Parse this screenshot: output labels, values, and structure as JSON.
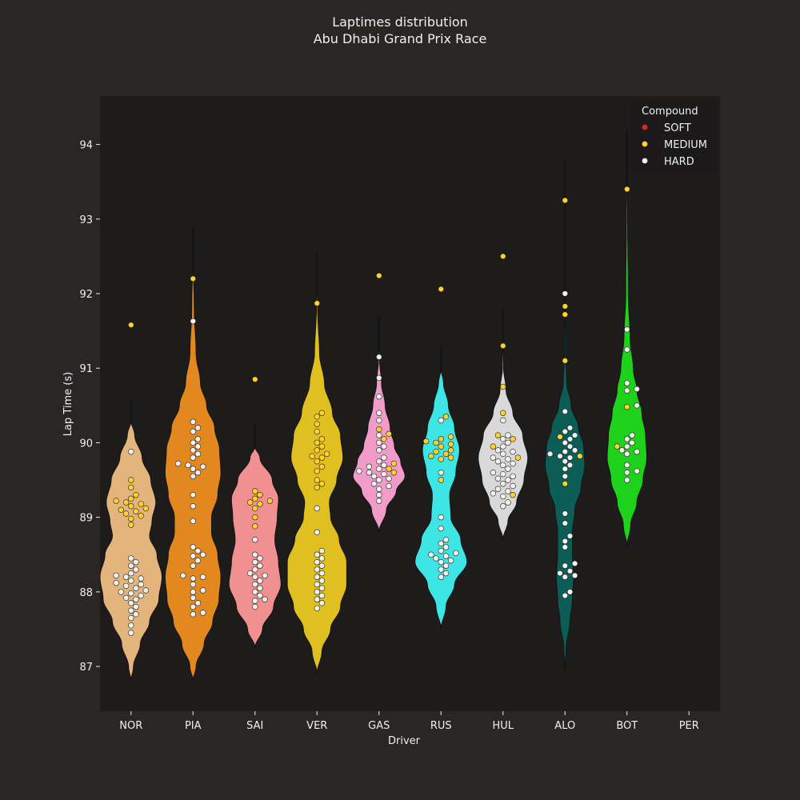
{
  "chart_data": {
    "type": "violin",
    "title": "Laptimes distribution",
    "subtitle": "Abu Dhabi Grand Prix Race",
    "xlabel": "Driver",
    "ylabel": "Lap Time (s)",
    "ylim": [
      86.4,
      94.65
    ],
    "yticks": [
      87,
      88,
      89,
      90,
      91,
      92,
      93,
      94
    ],
    "categories": [
      "NOR",
      "PIA",
      "SAI",
      "VER",
      "GAS",
      "RUS",
      "HUL",
      "ALO",
      "BOT",
      "PER"
    ],
    "legend": {
      "title": "Compound",
      "placement": "top-right",
      "items": [
        {
          "label": "SOFT",
          "color": "#da291c"
        },
        {
          "label": "MEDIUM",
          "color": "#ffd12e"
        },
        {
          "label": "HARD",
          "color": "#f0f0ec"
        }
      ]
    },
    "drivers": [
      {
        "name": "NOR",
        "color": "#e3b47c",
        "profile": [
          [
            86.8,
            0
          ],
          [
            87.0,
            0.04
          ],
          [
            87.3,
            0.15
          ],
          [
            87.6,
            0.3
          ],
          [
            87.9,
            0.45
          ],
          [
            88.2,
            0.5
          ],
          [
            88.5,
            0.42
          ],
          [
            88.75,
            0.3
          ],
          [
            88.95,
            0.34
          ],
          [
            89.2,
            0.4
          ],
          [
            89.5,
            0.32
          ],
          [
            89.8,
            0.18
          ],
          [
            90.1,
            0.06
          ],
          [
            90.3,
            0
          ]
        ],
        "points": [
          {
            "c": "HARD",
            "v": [
              87.45,
              87.55,
              87.65,
              87.7,
              87.75,
              87.8,
              87.85,
              87.9,
              87.92,
              87.95,
              87.98,
              88.0,
              88.02,
              88.05,
              88.08,
              88.1,
              88.12,
              88.15,
              88.18,
              88.2,
              88.22,
              88.25,
              88.3,
              88.35,
              88.4,
              88.45,
              89.88
            ]
          },
          {
            "c": "MEDIUM",
            "v": [
              88.9,
              88.98,
              89.02,
              89.05,
              89.08,
              89.1,
              89.12,
              89.15,
              89.18,
              89.2,
              89.22,
              89.25,
              89.3,
              89.4,
              89.5,
              91.58
            ]
          }
        ]
      },
      {
        "name": "PIA",
        "color": "#e3871f",
        "profile": [
          [
            86.8,
            0
          ],
          [
            87.0,
            0.05
          ],
          [
            87.3,
            0.18
          ],
          [
            87.6,
            0.32
          ],
          [
            87.9,
            0.42
          ],
          [
            88.2,
            0.45
          ],
          [
            88.5,
            0.4
          ],
          [
            88.8,
            0.3
          ],
          [
            89.0,
            0.3
          ],
          [
            89.3,
            0.4
          ],
          [
            89.6,
            0.45
          ],
          [
            89.9,
            0.43
          ],
          [
            90.2,
            0.35
          ],
          [
            90.5,
            0.22
          ],
          [
            90.8,
            0.12
          ],
          [
            91.2,
            0.05
          ],
          [
            91.8,
            0.02
          ],
          [
            92.6,
            0
          ]
        ],
        "points": [
          {
            "c": "HARD",
            "v": [
              87.7,
              87.72,
              87.8,
              87.85,
              87.92,
              88.0,
              88.02,
              88.1,
              88.18,
              88.2,
              88.22,
              88.35,
              88.42,
              88.48,
              88.5,
              88.55,
              88.6,
              88.95,
              89.15,
              89.3,
              89.55,
              89.6,
              89.65,
              89.68,
              89.7,
              89.72,
              89.8,
              89.85,
              89.9,
              89.95,
              90.0,
              90.05,
              90.15,
              90.2,
              90.28,
              91.63
            ]
          },
          {
            "c": "MEDIUM",
            "v": [
              92.2
            ]
          }
        ]
      },
      {
        "name": "SAI",
        "color": "#f09090",
        "profile": [
          [
            87.25,
            0
          ],
          [
            87.5,
            0.12
          ],
          [
            87.8,
            0.3
          ],
          [
            88.1,
            0.42
          ],
          [
            88.4,
            0.38
          ],
          [
            88.7,
            0.32
          ],
          [
            89.0,
            0.36
          ],
          [
            89.25,
            0.38
          ],
          [
            89.5,
            0.28
          ],
          [
            89.8,
            0.08
          ],
          [
            89.95,
            0
          ]
        ],
        "points": [
          {
            "c": "HARD",
            "v": [
              87.8,
              87.88,
              87.9,
              87.95,
              88.0,
              88.05,
              88.1,
              88.15,
              88.2,
              88.22,
              88.25,
              88.3,
              88.35,
              88.4,
              88.45,
              88.5,
              88.7
            ]
          },
          {
            "c": "MEDIUM",
            "v": [
              88.88,
              89.0,
              89.12,
              89.18,
              89.2,
              89.22,
              89.25,
              89.3,
              89.35,
              90.85
            ]
          }
        ]
      },
      {
        "name": "VER",
        "color": "#dfc020",
        "profile": [
          [
            86.9,
            0
          ],
          [
            87.2,
            0.08
          ],
          [
            87.5,
            0.22
          ],
          [
            87.8,
            0.38
          ],
          [
            88.1,
            0.48
          ],
          [
            88.4,
            0.48
          ],
          [
            88.7,
            0.36
          ],
          [
            89.0,
            0.22
          ],
          [
            89.2,
            0.2
          ],
          [
            89.5,
            0.32
          ],
          [
            89.8,
            0.42
          ],
          [
            90.1,
            0.38
          ],
          [
            90.4,
            0.25
          ],
          [
            90.8,
            0.12
          ],
          [
            91.2,
            0.04
          ],
          [
            91.8,
            0.01
          ],
          [
            92.25,
            0
          ]
        ],
        "points": [
          {
            "c": "HARD",
            "v": [
              87.78,
              87.85,
              87.9,
              87.95,
              88.0,
              88.05,
              88.1,
              88.15,
              88.2,
              88.25,
              88.3,
              88.35,
              88.4,
              88.45,
              88.5,
              88.55,
              88.8,
              89.12
            ]
          },
          {
            "c": "MEDIUM",
            "v": [
              89.4,
              89.45,
              89.5,
              89.62,
              89.68,
              89.75,
              89.8,
              89.82,
              89.85,
              89.9,
              89.95,
              90.0,
              90.05,
              90.15,
              90.25,
              90.35,
              90.4,
              91.87
            ]
          }
        ]
      },
      {
        "name": "GAS",
        "color": "#f19cc8",
        "profile": [
          [
            88.8,
            0
          ],
          [
            89.1,
            0.12
          ],
          [
            89.35,
            0.28
          ],
          [
            89.55,
            0.42
          ],
          [
            89.75,
            0.35
          ],
          [
            89.95,
            0.25
          ],
          [
            90.2,
            0.18
          ],
          [
            90.5,
            0.1
          ],
          [
            90.8,
            0.04
          ],
          [
            91.1,
            0.01
          ],
          [
            91.4,
            0
          ]
        ],
        "points": [
          {
            "c": "HARD",
            "v": [
              89.22,
              89.3,
              89.38,
              89.42,
              89.45,
              89.5,
              89.52,
              89.55,
              89.58,
              89.6,
              89.62,
              89.65,
              89.68,
              89.7,
              89.75,
              89.8,
              89.9,
              89.95,
              90.0,
              90.1,
              90.3,
              90.4,
              90.62,
              90.87,
              91.15
            ]
          },
          {
            "c": "MEDIUM",
            "v": [
              89.6,
              89.65,
              89.72,
              90.05,
              90.12,
              90.18,
              92.24
            ]
          }
        ]
      },
      {
        "name": "RUS",
        "color": "#3ee5e5",
        "profile": [
          [
            87.5,
            0
          ],
          [
            87.8,
            0.08
          ],
          [
            88.1,
            0.22
          ],
          [
            88.4,
            0.42
          ],
          [
            88.7,
            0.32
          ],
          [
            89.0,
            0.16
          ],
          [
            89.3,
            0.14
          ],
          [
            89.6,
            0.24
          ],
          [
            89.9,
            0.3
          ],
          [
            90.2,
            0.22
          ],
          [
            90.5,
            0.12
          ],
          [
            90.8,
            0.04
          ],
          [
            91.0,
            0
          ]
        ],
        "points": [
          {
            "c": "HARD",
            "v": [
              88.2,
              88.25,
              88.3,
              88.35,
              88.4,
              88.42,
              88.45,
              88.48,
              88.5,
              88.52,
              88.55,
              88.6,
              88.65,
              88.7,
              88.85,
              89.0,
              89.6,
              90.3
            ]
          },
          {
            "c": "MEDIUM",
            "v": [
              89.5,
              89.78,
              89.8,
              89.82,
              89.85,
              89.88,
              89.9,
              89.95,
              89.98,
              90.0,
              90.02,
              90.05,
              90.08,
              90.35,
              92.06
            ]
          }
        ]
      },
      {
        "name": "HUL",
        "color": "#d9d9d9",
        "profile": [
          [
            88.7,
            0
          ],
          [
            88.95,
            0.08
          ],
          [
            89.2,
            0.22
          ],
          [
            89.5,
            0.34
          ],
          [
            89.8,
            0.4
          ],
          [
            90.1,
            0.32
          ],
          [
            90.4,
            0.16
          ],
          [
            90.7,
            0.05
          ],
          [
            91.0,
            0.01
          ],
          [
            91.5,
            0
          ]
        ],
        "points": [
          {
            "c": "HARD",
            "v": [
              89.15,
              89.2,
              89.28,
              89.32,
              89.35,
              89.38,
              89.42,
              89.45,
              89.5,
              89.52,
              89.55,
              89.58,
              89.6,
              89.65,
              89.7,
              89.72,
              89.75,
              89.78,
              89.8,
              89.85,
              89.88,
              89.9,
              89.95,
              90.0,
              90.05,
              90.1,
              90.3
            ]
          },
          {
            "c": "MEDIUM",
            "v": [
              89.3,
              89.8,
              89.95,
              90.05,
              90.1,
              90.4,
              90.75,
              91.3,
              92.5
            ]
          }
        ]
      },
      {
        "name": "ALO",
        "color": "#0b5d55",
        "profile": [
          [
            86.95,
            0
          ],
          [
            87.25,
            0.02
          ],
          [
            87.6,
            0.08
          ],
          [
            87.9,
            0.12
          ],
          [
            88.2,
            0.14
          ],
          [
            88.5,
            0.12
          ],
          [
            88.8,
            0.12
          ],
          [
            89.1,
            0.16
          ],
          [
            89.4,
            0.26
          ],
          [
            89.7,
            0.32
          ],
          [
            89.95,
            0.3
          ],
          [
            90.2,
            0.22
          ],
          [
            90.5,
            0.1
          ],
          [
            90.8,
            0.03
          ],
          [
            91.2,
            0.01
          ],
          [
            92.0,
            0.005
          ],
          [
            93.5,
            0
          ]
        ],
        "points": [
          {
            "c": "HARD",
            "v": [
              87.95,
              88.0,
              88.2,
              88.22,
              88.25,
              88.28,
              88.35,
              88.38,
              88.6,
              88.68,
              88.75,
              88.92,
              89.05,
              89.55,
              89.65,
              89.7,
              89.75,
              89.8,
              89.82,
              89.85,
              89.88,
              89.9,
              89.95,
              90.0,
              90.05,
              90.1,
              90.15,
              90.2,
              90.42,
              92.0
            ]
          },
          {
            "c": "MEDIUM",
            "v": [
              89.45,
              89.82,
              90.08,
              91.1,
              91.72,
              91.83,
              93.25
            ]
          }
        ]
      },
      {
        "name": "BOT",
        "color": "#1ed21b",
        "profile": [
          [
            88.6,
            0
          ],
          [
            88.9,
            0.06
          ],
          [
            89.2,
            0.16
          ],
          [
            89.5,
            0.26
          ],
          [
            89.8,
            0.32
          ],
          [
            90.1,
            0.3
          ],
          [
            90.4,
            0.24
          ],
          [
            90.7,
            0.16
          ],
          [
            91.0,
            0.1
          ],
          [
            91.4,
            0.05
          ],
          [
            92.0,
            0.02
          ],
          [
            93.0,
            0.01
          ],
          [
            93.9,
            0
          ]
        ],
        "points": [
          {
            "c": "HARD",
            "v": [
              89.5,
              89.6,
              89.62,
              89.7,
              89.85,
              89.88,
              89.9,
              89.95,
              90.0,
              90.05,
              90.1,
              90.5,
              90.7,
              90.72,
              90.8,
              91.25,
              91.52
            ]
          },
          {
            "c": "MEDIUM",
            "v": [
              89.95,
              90.48,
              93.4
            ]
          }
        ]
      },
      {
        "name": "PER",
        "color": "#1e41ff",
        "profile": [],
        "points": []
      }
    ]
  }
}
